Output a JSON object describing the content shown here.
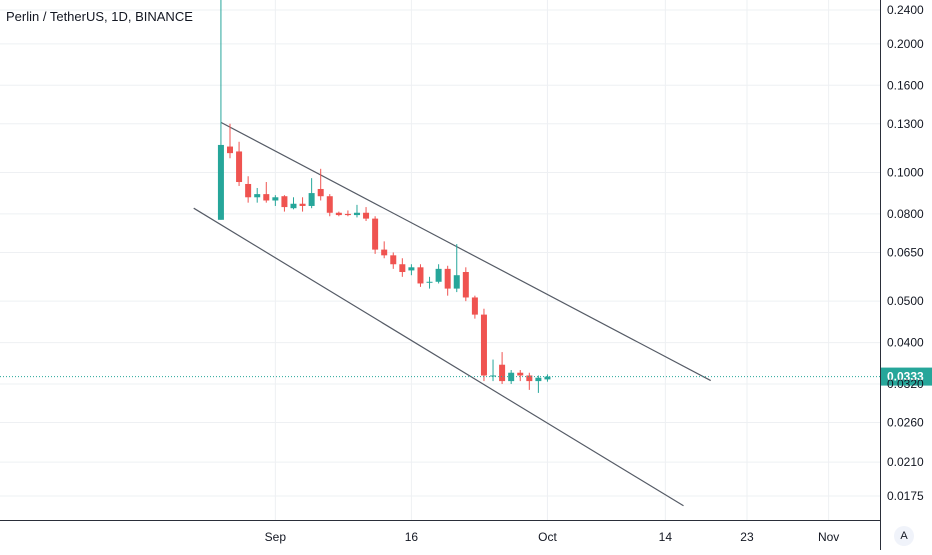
{
  "header": {
    "title": "Perlin / TetherUS, 1D, BINANCE"
  },
  "chart_data": {
    "type": "candlestick",
    "symbol": "Perlin / TetherUS",
    "interval": "1D",
    "exchange": "BINANCE",
    "y_scale": "log",
    "grid": true,
    "price_ticks": [
      "0.2400",
      "0.2000",
      "0.1600",
      "0.1300",
      "0.1000",
      "0.0800",
      "0.0650",
      "0.0500",
      "0.0400",
      "0.0320",
      "0.0260",
      "0.0210",
      "0.0175"
    ],
    "time_ticks": [
      {
        "label": "Sep",
        "day": 5
      },
      {
        "label": "16",
        "day": 20
      },
      {
        "label": "Oct",
        "day": 35
      },
      {
        "label": "14",
        "day": 48
      },
      {
        "label": "23",
        "day": 57
      },
      {
        "label": "Nov",
        "day": 66
      }
    ],
    "last_price": {
      "label": "0.0333",
      "value": 0.0333,
      "color": "#26a69a"
    },
    "colors": {
      "up": "#26a69a",
      "down": "#ef5350",
      "channel": "#555b66"
    },
    "candles": [
      {
        "day": -1,
        "o": 0.0775,
        "h": 0.27,
        "l": 0.0775,
        "c": 0.116
      },
      {
        "day": 0,
        "o": 0.115,
        "h": 0.13,
        "l": 0.108,
        "c": 0.111
      },
      {
        "day": 1,
        "o": 0.112,
        "h": 0.118,
        "l": 0.093,
        "c": 0.095
      },
      {
        "day": 2,
        "o": 0.094,
        "h": 0.098,
        "l": 0.085,
        "c": 0.0875
      },
      {
        "day": 3,
        "o": 0.0875,
        "h": 0.092,
        "l": 0.085,
        "c": 0.089
      },
      {
        "day": 4,
        "o": 0.089,
        "h": 0.095,
        "l": 0.085,
        "c": 0.086
      },
      {
        "day": 5,
        "o": 0.086,
        "h": 0.0885,
        "l": 0.0835,
        "c": 0.0875
      },
      {
        "day": 6,
        "o": 0.088,
        "h": 0.0885,
        "l": 0.081,
        "c": 0.083
      },
      {
        "day": 7,
        "o": 0.0825,
        "h": 0.0875,
        "l": 0.082,
        "c": 0.0845
      },
      {
        "day": 8,
        "o": 0.0845,
        "h": 0.0875,
        "l": 0.081,
        "c": 0.0835
      },
      {
        "day": 9,
        "o": 0.0835,
        "h": 0.097,
        "l": 0.0825,
        "c": 0.0895
      },
      {
        "day": 10,
        "o": 0.0915,
        "h": 0.102,
        "l": 0.086,
        "c": 0.088
      },
      {
        "day": 11,
        "o": 0.088,
        "h": 0.089,
        "l": 0.079,
        "c": 0.0805
      },
      {
        "day": 12,
        "o": 0.0805,
        "h": 0.081,
        "l": 0.079,
        "c": 0.0795
      },
      {
        "day": 13,
        "o": 0.08,
        "h": 0.0815,
        "l": 0.079,
        "c": 0.0795
      },
      {
        "day": 14,
        "o": 0.0795,
        "h": 0.084,
        "l": 0.0785,
        "c": 0.0805
      },
      {
        "day": 15,
        "o": 0.0805,
        "h": 0.083,
        "l": 0.077,
        "c": 0.078
      },
      {
        "day": 16,
        "o": 0.078,
        "h": 0.079,
        "l": 0.0645,
        "c": 0.066
      },
      {
        "day": 17,
        "o": 0.066,
        "h": 0.069,
        "l": 0.063,
        "c": 0.064
      },
      {
        "day": 18,
        "o": 0.064,
        "h": 0.065,
        "l": 0.0595,
        "c": 0.061
      },
      {
        "day": 19,
        "o": 0.061,
        "h": 0.063,
        "l": 0.057,
        "c": 0.0585
      },
      {
        "day": 20,
        "o": 0.059,
        "h": 0.061,
        "l": 0.0575,
        "c": 0.06
      },
      {
        "day": 21,
        "o": 0.06,
        "h": 0.061,
        "l": 0.054,
        "c": 0.055
      },
      {
        "day": 22,
        "o": 0.0555,
        "h": 0.057,
        "l": 0.0535,
        "c": 0.0555
      },
      {
        "day": 23,
        "o": 0.0555,
        "h": 0.061,
        "l": 0.055,
        "c": 0.0595
      },
      {
        "day": 24,
        "o": 0.0595,
        "h": 0.0605,
        "l": 0.0515,
        "c": 0.0535
      },
      {
        "day": 25,
        "o": 0.0535,
        "h": 0.068,
        "l": 0.0525,
        "c": 0.0575
      },
      {
        "day": 26,
        "o": 0.0585,
        "h": 0.06,
        "l": 0.05,
        "c": 0.051
      },
      {
        "day": 27,
        "o": 0.051,
        "h": 0.0515,
        "l": 0.0455,
        "c": 0.0465
      },
      {
        "day": 28,
        "o": 0.0465,
        "h": 0.048,
        "l": 0.0325,
        "c": 0.0335
      },
      {
        "day": 29,
        "o": 0.0335,
        "h": 0.0365,
        "l": 0.0325,
        "c": 0.0335
      },
      {
        "day": 30,
        "o": 0.0355,
        "h": 0.038,
        "l": 0.032,
        "c": 0.0325
      },
      {
        "day": 31,
        "o": 0.0325,
        "h": 0.0345,
        "l": 0.032,
        "c": 0.034
      },
      {
        "day": 32,
        "o": 0.034,
        "h": 0.0345,
        "l": 0.0325,
        "c": 0.0335
      },
      {
        "day": 33,
        "o": 0.0335,
        "h": 0.034,
        "l": 0.031,
        "c": 0.0325
      },
      {
        "day": 34,
        "o": 0.0325,
        "h": 0.0335,
        "l": 0.0305,
        "c": 0.0331
      },
      {
        "day": 35,
        "o": 0.0328,
        "h": 0.0337,
        "l": 0.0324,
        "c": 0.0333
      }
    ],
    "channel": [
      {
        "name": "upper",
        "from": {
          "day": -1,
          "price": 0.131
        },
        "to": {
          "day": 53,
          "price": 0.0326
        }
      },
      {
        "name": "lower",
        "from": {
          "day": -4,
          "price": 0.0825
        },
        "to": {
          "day": 50,
          "price": 0.0166
        }
      }
    ]
  },
  "controls": {
    "auto_scale_label": "A"
  }
}
